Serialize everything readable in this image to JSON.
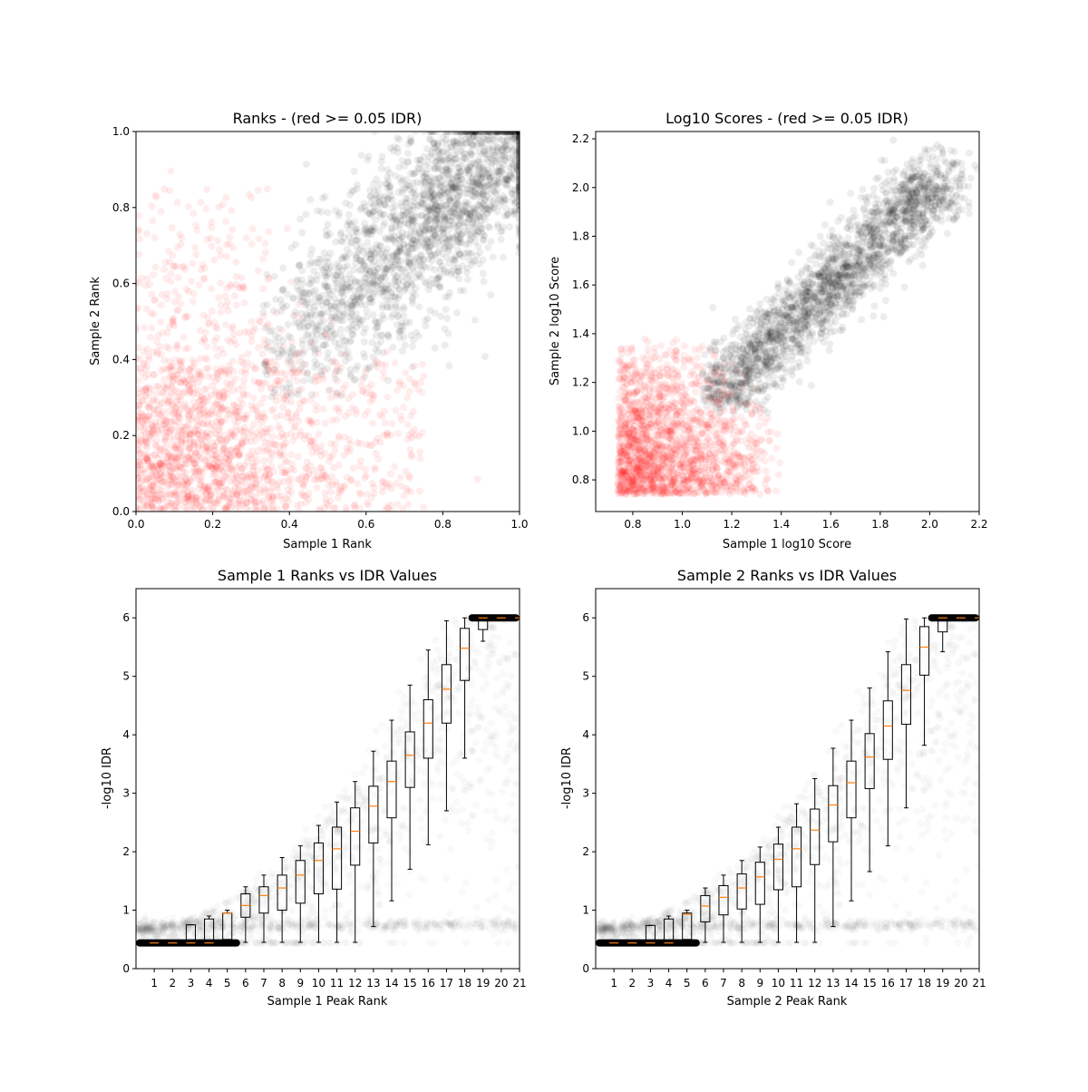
{
  "chart_data": [
    {
      "type": "scatter",
      "title": "Ranks - (red >= 0.05 IDR)",
      "xlabel": "Sample 1 Rank",
      "ylabel": "Sample 2 Rank",
      "xlim": [
        0.0,
        1.0
      ],
      "ylim": [
        0.0,
        1.0
      ],
      "xticks": [
        "0.0",
        "0.2",
        "0.4",
        "0.6",
        "0.8",
        "1.0"
      ],
      "yticks": [
        "0.0",
        "0.2",
        "0.4",
        "0.6",
        "0.8",
        "1.0"
      ],
      "grid": false,
      "series": [
        {
          "color": "#ff0000",
          "alpha": 0.07,
          "region": "IDR >= 0.05: dense near (0,0); sample 1 rank up to about 0.8, sample 2 rank up to about 0.9",
          "points_approx": [
            [
              0.05,
              0.05
            ],
            [
              0.15,
              0.1
            ],
            [
              0.25,
              0.2
            ],
            [
              0.1,
              0.35
            ],
            [
              0.3,
              0.3
            ],
            [
              0.45,
              0.2
            ],
            [
              0.6,
              0.15
            ],
            [
              0.2,
              0.6
            ],
            [
              0.4,
              0.05
            ]
          ]
        },
        {
          "color": "#000000",
          "alpha": 0.07,
          "region": "IDR < 0.05: sample 2 rank above about 0.3 and sample 1 rank above about 0.33, dense near (1,1)",
          "points_approx": [
            [
              0.4,
              0.4
            ],
            [
              0.5,
              0.5
            ],
            [
              0.6,
              0.6
            ],
            [
              0.7,
              0.7
            ],
            [
              0.8,
              0.8
            ],
            [
              0.9,
              0.9
            ],
            [
              0.95,
              0.95
            ],
            [
              0.6,
              0.4
            ],
            [
              0.4,
              0.7
            ]
          ]
        }
      ]
    },
    {
      "type": "scatter",
      "title": "Log10 Scores - (red >= 0.05 IDR)",
      "xlabel": "Sample 1 log10 Score",
      "ylabel": "Sample 2 log10 Score",
      "xlim": [
        0.65,
        2.2
      ],
      "ylim": [
        0.67,
        2.23
      ],
      "xticks": [
        "0.8",
        "1.0",
        "1.2",
        "1.4",
        "1.6",
        "1.8",
        "2.0",
        "2.2"
      ],
      "yticks": [
        "0.8",
        "1.0",
        "1.2",
        "1.4",
        "1.6",
        "1.8",
        "2.0",
        "2.2"
      ],
      "grid": false,
      "series": [
        {
          "color": "#ff0000",
          "alpha": 0.07,
          "region": "IDR >= 0.05: scores from 0.74 to about 1.4",
          "points_approx": [
            [
              0.8,
              0.8
            ],
            [
              0.9,
              0.9
            ],
            [
              1.0,
              1.0
            ],
            [
              1.1,
              0.85
            ],
            [
              0.85,
              1.2
            ],
            [
              1.3,
              0.95
            ]
          ]
        },
        {
          "color": "#000000",
          "alpha": 0.07,
          "region": "IDR < 0.05: both scores above about 1.08, trending to 2.1",
          "points_approx": [
            [
              1.15,
              1.15
            ],
            [
              1.3,
              1.3
            ],
            [
              1.45,
              1.45
            ],
            [
              1.6,
              1.6
            ],
            [
              1.8,
              1.8
            ],
            [
              2.0,
              2.0
            ],
            [
              2.1,
              2.12
            ]
          ]
        }
      ]
    },
    {
      "type": "box",
      "title": "Sample 1 Ranks vs IDR Values",
      "xlabel": "Sample 1 Peak Rank",
      "ylabel": "-log10 IDR",
      "xlim": [
        0,
        21
      ],
      "ylim": [
        0,
        6.5
      ],
      "categories": [
        "1",
        "2",
        "3",
        "4",
        "5",
        "6",
        "7",
        "8",
        "9",
        "10",
        "11",
        "12",
        "13",
        "14",
        "15",
        "16",
        "17",
        "18",
        "19",
        "20",
        "21"
      ],
      "yticks": [
        "0",
        "1",
        "2",
        "3",
        "4",
        "5",
        "6"
      ],
      "grid": false,
      "boxes": [
        {
          "q1": 0.44,
          "median": 0.44,
          "q3": 0.44,
          "whislo": 0.44,
          "whishi": 0.44
        },
        {
          "q1": 0.44,
          "median": 0.44,
          "q3": 0.44,
          "whislo": 0.44,
          "whishi": 0.44
        },
        {
          "q1": 0.44,
          "median": 0.44,
          "q3": 0.75,
          "whislo": 0.44,
          "whishi": 0.75
        },
        {
          "q1": 0.44,
          "median": 0.44,
          "q3": 0.85,
          "whislo": 0.44,
          "whishi": 0.9
        },
        {
          "q1": 0.5,
          "median": 0.95,
          "q3": 0.95,
          "whislo": 0.44,
          "whishi": 1.0
        },
        {
          "q1": 0.88,
          "median": 1.08,
          "q3": 1.28,
          "whislo": 0.45,
          "whishi": 1.4
        },
        {
          "q1": 0.95,
          "median": 1.25,
          "q3": 1.4,
          "whislo": 0.45,
          "whishi": 1.6
        },
        {
          "q1": 1.0,
          "median": 1.38,
          "q3": 1.6,
          "whislo": 0.45,
          "whishi": 1.9
        },
        {
          "q1": 1.12,
          "median": 1.6,
          "q3": 1.85,
          "whislo": 0.45,
          "whishi": 2.1
        },
        {
          "q1": 1.28,
          "median": 1.85,
          "q3": 2.15,
          "whislo": 0.45,
          "whishi": 2.45
        },
        {
          "q1": 1.36,
          "median": 2.05,
          "q3": 2.42,
          "whislo": 0.45,
          "whishi": 2.85
        },
        {
          "q1": 1.77,
          "median": 2.35,
          "q3": 2.75,
          "whislo": 0.45,
          "whishi": 3.2
        },
        {
          "q1": 2.15,
          "median": 2.78,
          "q3": 3.12,
          "whislo": 0.72,
          "whishi": 3.72
        },
        {
          "q1": 2.58,
          "median": 3.2,
          "q3": 3.55,
          "whislo": 1.16,
          "whishi": 4.25
        },
        {
          "q1": 3.1,
          "median": 3.65,
          "q3": 4.05,
          "whislo": 1.7,
          "whishi": 4.85
        },
        {
          "q1": 3.6,
          "median": 4.2,
          "q3": 4.6,
          "whislo": 2.12,
          "whishi": 5.45
        },
        {
          "q1": 4.2,
          "median": 4.78,
          "q3": 5.2,
          "whislo": 2.7,
          "whishi": 5.95
        },
        {
          "q1": 4.93,
          "median": 5.48,
          "q3": 5.82,
          "whislo": 3.6,
          "whishi": 6.0
        },
        {
          "q1": 5.8,
          "median": 6.0,
          "q3": 6.0,
          "whislo": 5.6,
          "whishi": 6.0
        },
        {
          "q1": 6.0,
          "median": 6.0,
          "q3": 6.0,
          "whislo": 6.0,
          "whishi": 6.0
        },
        {
          "q1": 6.0,
          "median": 6.0,
          "q3": 6.0,
          "whislo": 6.0,
          "whishi": 6.0
        }
      ],
      "scatter_note": "gray translucent points: IDR rising from ~0.7 at rank 0 to 6 at rank ~20"
    },
    {
      "type": "box",
      "title": "Sample 2 Ranks vs IDR Values",
      "xlabel": "Sample 2 Peak Rank",
      "ylabel": "-log10 IDR",
      "xlim": [
        0,
        21
      ],
      "ylim": [
        0,
        6.5
      ],
      "categories": [
        "1",
        "2",
        "3",
        "4",
        "5",
        "6",
        "7",
        "8",
        "9",
        "10",
        "11",
        "12",
        "13",
        "14",
        "15",
        "16",
        "17",
        "18",
        "19",
        "20",
        "21"
      ],
      "yticks": [
        "0",
        "1",
        "2",
        "3",
        "4",
        "5",
        "6"
      ],
      "grid": false,
      "boxes": [
        {
          "q1": 0.44,
          "median": 0.44,
          "q3": 0.44,
          "whislo": 0.44,
          "whishi": 0.44
        },
        {
          "q1": 0.44,
          "median": 0.44,
          "q3": 0.44,
          "whislo": 0.44,
          "whishi": 0.44
        },
        {
          "q1": 0.44,
          "median": 0.44,
          "q3": 0.74,
          "whislo": 0.44,
          "whishi": 0.74
        },
        {
          "q1": 0.44,
          "median": 0.44,
          "q3": 0.85,
          "whislo": 0.44,
          "whishi": 0.9
        },
        {
          "q1": 0.5,
          "median": 0.93,
          "q3": 0.95,
          "whislo": 0.44,
          "whishi": 1.0
        },
        {
          "q1": 0.8,
          "median": 1.07,
          "q3": 1.25,
          "whislo": 0.45,
          "whishi": 1.38
        },
        {
          "q1": 0.92,
          "median": 1.22,
          "q3": 1.42,
          "whislo": 0.45,
          "whishi": 1.6
        },
        {
          "q1": 1.02,
          "median": 1.38,
          "q3": 1.62,
          "whislo": 0.45,
          "whishi": 1.85
        },
        {
          "q1": 1.1,
          "median": 1.57,
          "q3": 1.82,
          "whislo": 0.45,
          "whishi": 2.08
        },
        {
          "q1": 1.35,
          "median": 1.87,
          "q3": 2.13,
          "whislo": 0.45,
          "whishi": 2.42
        },
        {
          "q1": 1.4,
          "median": 2.05,
          "q3": 2.42,
          "whislo": 0.45,
          "whishi": 2.82
        },
        {
          "q1": 1.78,
          "median": 2.37,
          "q3": 2.73,
          "whislo": 0.45,
          "whishi": 3.25
        },
        {
          "q1": 2.17,
          "median": 2.8,
          "q3": 3.13,
          "whislo": 0.72,
          "whishi": 3.77
        },
        {
          "q1": 2.58,
          "median": 3.18,
          "q3": 3.55,
          "whislo": 1.16,
          "whishi": 4.25
        },
        {
          "q1": 3.08,
          "median": 3.62,
          "q3": 4.02,
          "whislo": 1.66,
          "whishi": 4.8
        },
        {
          "q1": 3.58,
          "median": 4.15,
          "q3": 4.58,
          "whislo": 2.1,
          "whishi": 5.42
        },
        {
          "q1": 4.18,
          "median": 4.76,
          "q3": 5.2,
          "whislo": 2.75,
          "whishi": 5.98
        },
        {
          "q1": 5.02,
          "median": 5.5,
          "q3": 5.85,
          "whislo": 3.82,
          "whishi": 6.0
        },
        {
          "q1": 5.76,
          "median": 6.0,
          "q3": 6.0,
          "whislo": 5.42,
          "whishi": 6.0
        },
        {
          "q1": 6.0,
          "median": 6.0,
          "q3": 6.0,
          "whislo": 6.0,
          "whishi": 6.0
        },
        {
          "q1": 6.0,
          "median": 6.0,
          "q3": 6.0,
          "whislo": 6.0,
          "whishi": 6.0
        }
      ],
      "scatter_note": "gray translucent points: IDR rising from ~0.7 at rank 0 to 6 at rank ~20"
    }
  ]
}
